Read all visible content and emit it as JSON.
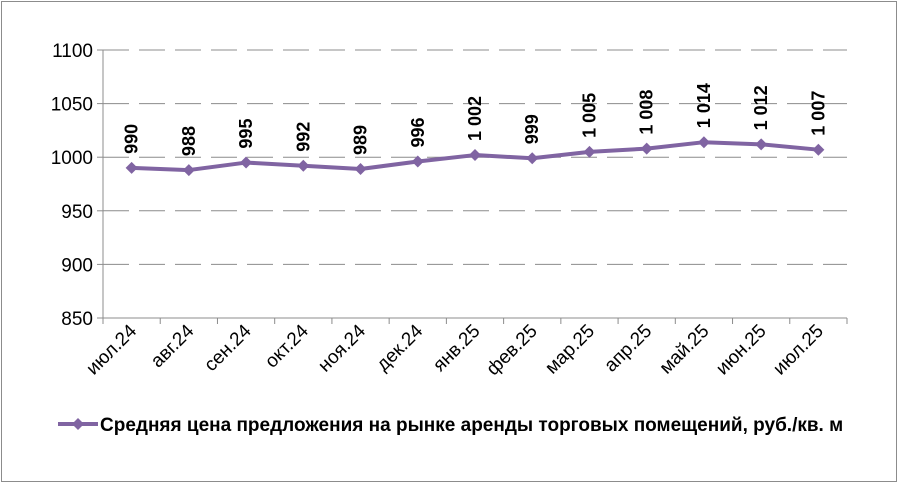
{
  "chart_data": {
    "type": "line",
    "categories": [
      "июл.24",
      "авг.24",
      "сен.24",
      "окт.24",
      "ноя.24",
      "дек.24",
      "янв.25",
      "фев.25",
      "мар.25",
      "апр.25",
      "май.25",
      "июн.25",
      "июл.25"
    ],
    "series": [
      {
        "name": "Средняя цена предложения на рынке аренды торговых помещений, руб./кв. м",
        "values": [
          990,
          988,
          995,
          992,
          989,
          996,
          1002,
          999,
          1005,
          1008,
          1014,
          1012,
          1007
        ],
        "labels": [
          "990",
          "988",
          "995",
          "992",
          "989",
          "996",
          "1 002",
          "999",
          "1 005",
          "1 008",
          "1 014",
          "1 012",
          "1 007"
        ],
        "color": "#8064a2"
      }
    ],
    "ylim": [
      850,
      1100
    ],
    "yticks": [
      "850",
      "900",
      "950",
      "1000",
      "1050",
      "1100"
    ],
    "grid": "dashed horizontal",
    "legend": "bottom"
  }
}
